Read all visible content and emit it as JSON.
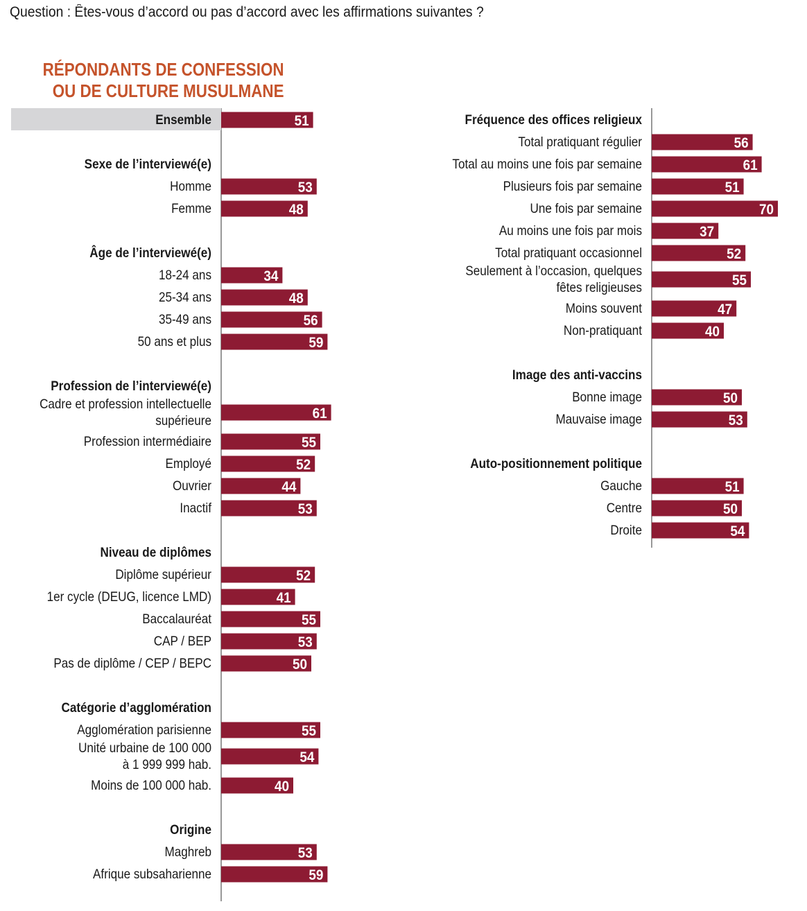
{
  "question": "Question : Êtes-vous d’accord ou pas d’accord avec les affirmations suivantes ?",
  "subtitle": [
    "RÉPONDANTS DE CONFESSION",
    "OU DE CULTURE MUSULMANE"
  ],
  "colors": {
    "bar": "#8d1b33",
    "subtitle": "#c5532b",
    "highlight_bg": "#d6d6d8",
    "value_text": "#ffffff"
  },
  "chart_data": {
    "type": "bar",
    "orientation": "horizontal",
    "scale": [
      0,
      100
    ],
    "columns": [
      {
        "rows": [
          {
            "kind": "highlight",
            "label": "Ensemble",
            "value": 51
          },
          {
            "kind": "header",
            "label": "Sexe de l’interviewé(e)"
          },
          {
            "kind": "bar",
            "label": "Homme",
            "value": 53
          },
          {
            "kind": "bar",
            "label": "Femme",
            "value": 48
          },
          {
            "kind": "header",
            "label": "Âge de l’interviewé(e)"
          },
          {
            "kind": "bar",
            "label": "18-24 ans",
            "value": 34
          },
          {
            "kind": "bar",
            "label": "25-34 ans",
            "value": 48
          },
          {
            "kind": "bar",
            "label": "35-49 ans",
            "value": 56
          },
          {
            "kind": "bar",
            "label": "50 ans et plus",
            "value": 59
          },
          {
            "kind": "header",
            "label": "Profession de l’interviewé(e)"
          },
          {
            "kind": "bar",
            "label": [
              "Cadre et profession intellectuelle",
              "supérieure"
            ],
            "value": 61
          },
          {
            "kind": "bar",
            "label": "Profession intermédiaire",
            "value": 55
          },
          {
            "kind": "bar",
            "label": "Employé",
            "value": 52
          },
          {
            "kind": "bar",
            "label": "Ouvrier",
            "value": 44
          },
          {
            "kind": "bar",
            "label": "Inactif",
            "value": 53
          },
          {
            "kind": "header",
            "label": "Niveau de diplômes"
          },
          {
            "kind": "bar",
            "label": "Diplôme supérieur",
            "value": 52
          },
          {
            "kind": "bar",
            "label": "1er cycle (DEUG, licence LMD)",
            "value": 41
          },
          {
            "kind": "bar",
            "label": "Baccalauréat",
            "value": 55
          },
          {
            "kind": "bar",
            "label": "CAP / BEP",
            "value": 53
          },
          {
            "kind": "bar",
            "label": "Pas de diplôme / CEP / BEPC",
            "value": 50
          },
          {
            "kind": "header",
            "label": "Catégorie d’agglomération"
          },
          {
            "kind": "bar",
            "label": "Agglomération parisienne",
            "value": 55
          },
          {
            "kind": "bar",
            "label": [
              "Unité urbaine de 100 000",
              "à 1 999 999 hab."
            ],
            "value": 54
          },
          {
            "kind": "bar",
            "label": "Moins de 100 000 hab.",
            "value": 40
          },
          {
            "kind": "header",
            "label": "Origine"
          },
          {
            "kind": "bar",
            "label": "Maghreb",
            "value": 53
          },
          {
            "kind": "bar",
            "label": "Afrique subsaharienne",
            "value": 59
          }
        ]
      },
      {
        "rows": [
          {
            "kind": "header",
            "label": "Fréquence des offices religieux"
          },
          {
            "kind": "bar",
            "label": "Total pratiquant régulier",
            "value": 56
          },
          {
            "kind": "bar",
            "label": "Total au moins une fois par semaine",
            "value": 61
          },
          {
            "kind": "bar",
            "label": "Plusieurs fois par semaine",
            "value": 51
          },
          {
            "kind": "bar",
            "label": "Une fois par semaine",
            "value": 70
          },
          {
            "kind": "bar",
            "label": "Au moins une fois par mois",
            "value": 37
          },
          {
            "kind": "bar",
            "label": "Total pratiquant occasionnel",
            "value": 52
          },
          {
            "kind": "bar",
            "label": [
              "Seulement à l’occasion, quelques",
              "fêtes religieuses"
            ],
            "value": 55
          },
          {
            "kind": "bar",
            "label": "Moins souvent",
            "value": 47
          },
          {
            "kind": "bar",
            "label": "Non-pratiquant",
            "value": 40
          },
          {
            "kind": "header",
            "label": "Image des anti-vaccins"
          },
          {
            "kind": "bar",
            "label": "Bonne image",
            "value": 50
          },
          {
            "kind": "bar",
            "label": "Mauvaise image",
            "value": 53
          },
          {
            "kind": "header",
            "label": "Auto-positionnement politique"
          },
          {
            "kind": "bar",
            "label": "Gauche",
            "value": 51
          },
          {
            "kind": "bar",
            "label": "Centre",
            "value": 50
          },
          {
            "kind": "bar",
            "label": "Droite",
            "value": 54
          }
        ]
      }
    ]
  }
}
